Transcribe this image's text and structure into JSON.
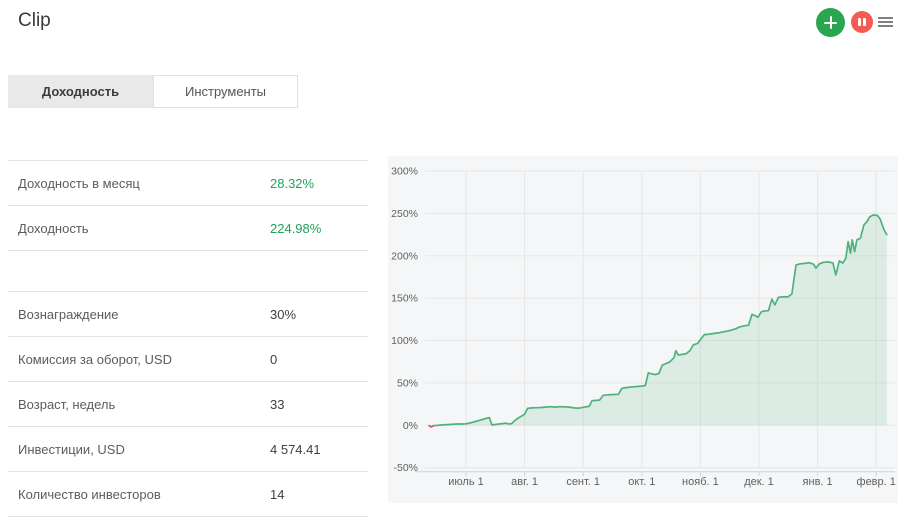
{
  "page": {
    "title": "Clip"
  },
  "header": {
    "add_button_icon": "plus-icon",
    "pause_button_icon": "pause-icon",
    "menu_button_icon": "hamburger-menu-icon"
  },
  "colors": {
    "add_button_green": "#2aa651",
    "pause_button_red": "#f45b55",
    "value_green": "#21a15e",
    "line_green": "#4fb27d",
    "line_negative_red": "#e2574c",
    "area_fill": "rgba(79,178,125,0.15)",
    "grid_line": "#e6e6e6",
    "axis_line": "#c9d4e6",
    "axis_label": "#606060",
    "panel_background": "#f5f6f7"
  },
  "tabs": [
    {
      "label": "Доходность",
      "active": true
    },
    {
      "label": "Инструменты",
      "active": false
    }
  ],
  "stats": {
    "highlight_rows": [
      {
        "label": "Доходность в месяц",
        "value": "28.32%"
      },
      {
        "label": "Доходность",
        "value": "224.98%"
      }
    ],
    "info_rows": [
      {
        "label": "Вознаграждение",
        "value": "30%"
      },
      {
        "label": "Комиссия за оборот, USD",
        "value": "0"
      },
      {
        "label": "Возраст, недель",
        "value": "33"
      },
      {
        "label": "Инвестиции, USD",
        "value": "4 574.41"
      },
      {
        "label": "Количество инвесторов",
        "value": "14"
      }
    ]
  },
  "chart_data": {
    "type": "area",
    "title": "",
    "ylabel": "",
    "xlabel": "",
    "x_unit": "months, 1 = июль 1",
    "xlim": [
      0.3,
      8.32
    ],
    "ylim": [
      -50,
      300
    ],
    "grid": true,
    "legend": "none",
    "x_tick_values": [
      1,
      2,
      3,
      4,
      5,
      6,
      7,
      8
    ],
    "x_tick_labels": [
      "июль 1",
      "авг. 1",
      "сент. 1",
      "окт. 1",
      "нояб. 1",
      "дек. 1",
      "янв. 1",
      "февр. 1"
    ],
    "y_tick_values": [
      300,
      250,
      200,
      150,
      100,
      50,
      0,
      -50
    ],
    "y_tick_labels": [
      "300%",
      "250%",
      "200%",
      "150%",
      "100%",
      "50%",
      "0%",
      "-50%"
    ],
    "area_threshold": 0,
    "series": [
      {
        "name": "Доходность",
        "color": "#4fb27d",
        "negative_color": "#e2574c",
        "fill": "rgba(79,178,125,0.15)",
        "red_segment_end_index": 2,
        "points": [
          [
            0.37,
            -0.5
          ],
          [
            0.4,
            -2
          ],
          [
            0.45,
            -0.5
          ],
          [
            0.52,
            0
          ],
          [
            0.6,
            0.5
          ],
          [
            0.68,
            0.8
          ],
          [
            0.76,
            1.2
          ],
          [
            0.84,
            1.5
          ],
          [
            0.92,
            1.5
          ],
          [
            1.0,
            1.8
          ],
          [
            1.08,
            3
          ],
          [
            1.16,
            4.5
          ],
          [
            1.24,
            6
          ],
          [
            1.31,
            7.5
          ],
          [
            1.36,
            8.5
          ],
          [
            1.4,
            9
          ],
          [
            1.44,
            0.5
          ],
          [
            1.5,
            1
          ],
          [
            1.56,
            1.5
          ],
          [
            1.62,
            2
          ],
          [
            1.68,
            2.5
          ],
          [
            1.72,
            1.5
          ],
          [
            1.78,
            2
          ],
          [
            1.84,
            6
          ],
          [
            1.9,
            9
          ],
          [
            1.95,
            11
          ],
          [
            2.0,
            13
          ],
          [
            2.05,
            20
          ],
          [
            2.12,
            20.5
          ],
          [
            2.2,
            20.8
          ],
          [
            2.28,
            21
          ],
          [
            2.36,
            21.5
          ],
          [
            2.44,
            22
          ],
          [
            2.52,
            21.5
          ],
          [
            2.6,
            22
          ],
          [
            2.68,
            21.8
          ],
          [
            2.76,
            21.5
          ],
          [
            2.84,
            20.5
          ],
          [
            2.92,
            20.2
          ],
          [
            3.0,
            21.3
          ],
          [
            3.06,
            22
          ],
          [
            3.1,
            22.3
          ],
          [
            3.15,
            29
          ],
          [
            3.22,
            29.4
          ],
          [
            3.28,
            29.8
          ],
          [
            3.34,
            35.4
          ],
          [
            3.43,
            36
          ],
          [
            3.52,
            36.4
          ],
          [
            3.6,
            36.6
          ],
          [
            3.66,
            43.7
          ],
          [
            3.73,
            44.5
          ],
          [
            3.82,
            45.2
          ],
          [
            3.91,
            45.8
          ],
          [
            4.0,
            46.2
          ],
          [
            4.06,
            47
          ],
          [
            4.11,
            62
          ],
          [
            4.17,
            60.5
          ],
          [
            4.23,
            60
          ],
          [
            4.29,
            61
          ],
          [
            4.35,
            71
          ],
          [
            4.42,
            73
          ],
          [
            4.48,
            75
          ],
          [
            4.55,
            80
          ],
          [
            4.58,
            88
          ],
          [
            4.62,
            83
          ],
          [
            4.68,
            83.5
          ],
          [
            4.75,
            84.2
          ],
          [
            4.82,
            88
          ],
          [
            4.88,
            95
          ],
          [
            4.95,
            96.5
          ],
          [
            5.02,
            103
          ],
          [
            5.07,
            107
          ],
          [
            5.15,
            107.6
          ],
          [
            5.24,
            108.4
          ],
          [
            5.33,
            109.4
          ],
          [
            5.42,
            110.6
          ],
          [
            5.51,
            112
          ],
          [
            5.6,
            113.8
          ],
          [
            5.68,
            116.3
          ],
          [
            5.76,
            117.5
          ],
          [
            5.82,
            118
          ],
          [
            5.88,
            131
          ],
          [
            5.93,
            129.5
          ],
          [
            5.98,
            127.4
          ],
          [
            6.04,
            134
          ],
          [
            6.1,
            135
          ],
          [
            6.16,
            135.2
          ],
          [
            6.22,
            148.7
          ],
          [
            6.27,
            142
          ],
          [
            6.33,
            151
          ],
          [
            6.41,
            151.7
          ],
          [
            6.49,
            151.5
          ],
          [
            6.56,
            155
          ],
          [
            6.63,
            189
          ],
          [
            6.7,
            190.5
          ],
          [
            6.78,
            191
          ],
          [
            6.86,
            191.8
          ],
          [
            6.93,
            190
          ],
          [
            6.97,
            185.6
          ],
          [
            7.03,
            190.5
          ],
          [
            7.1,
            192.3
          ],
          [
            7.18,
            192.8
          ],
          [
            7.26,
            191.5
          ],
          [
            7.31,
            177.4
          ],
          [
            7.37,
            194
          ],
          [
            7.43,
            191.3
          ],
          [
            7.48,
            197
          ],
          [
            7.52,
            216.6
          ],
          [
            7.56,
            203
          ],
          [
            7.59,
            218.7
          ],
          [
            7.63,
            204.8
          ],
          [
            7.67,
            218.7
          ],
          [
            7.73,
            220.7
          ],
          [
            7.79,
            236.4
          ],
          [
            7.84,
            240.2
          ],
          [
            7.89,
            246.1
          ],
          [
            7.95,
            248.1
          ],
          [
            8.02,
            247.6
          ],
          [
            8.07,
            242.9
          ],
          [
            8.11,
            234.8
          ],
          [
            8.15,
            228.4
          ],
          [
            8.18,
            224.98
          ]
        ]
      }
    ]
  }
}
